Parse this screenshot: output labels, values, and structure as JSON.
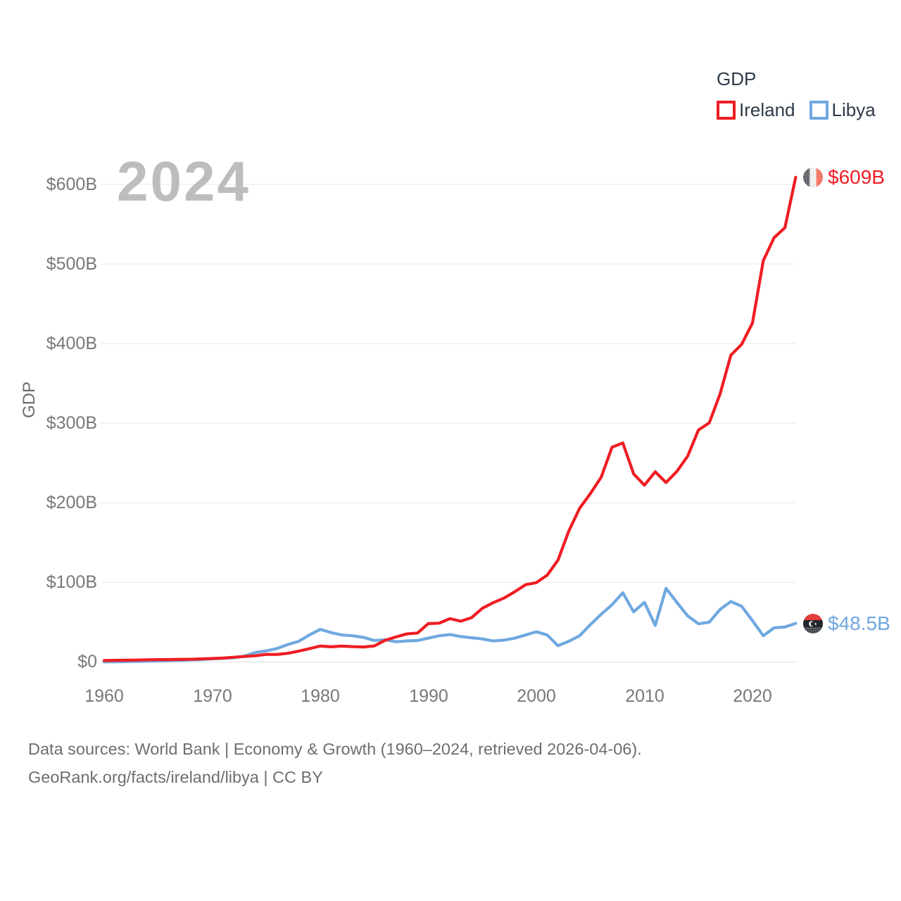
{
  "watermark": "2024",
  "legend": {
    "title": "GDP"
  },
  "y_axis": {
    "label": "GDP",
    "ticks": [
      "$600B",
      "$500B",
      "$400B",
      "$300B",
      "$200B",
      "$100B",
      "$0"
    ]
  },
  "x_axis": {
    "ticks": [
      "1960",
      "1970",
      "1980",
      "1990",
      "2000",
      "2010",
      "2020"
    ]
  },
  "footer": {
    "line1": "Data sources: World Bank | Economy & Growth (1960–2024, retrieved 2026-04-06).",
    "line2": "GeoRank.org/facts/ireland/libya | CC BY"
  },
  "colors": {
    "ireland": "#ee1d23",
    "libya": "#6fa8e0",
    "grid": "#ededed",
    "grid_zero": "#e4e4e4",
    "axis_text": "#787878",
    "watermark": "#bdbdbd",
    "legend_text": "#2e3a48",
    "footer_text": "#6e6e6e"
  },
  "chart_data": {
    "type": "line",
    "title": "GDP",
    "xlabel": "",
    "ylabel": "GDP",
    "x_range": [
      1960,
      2024
    ],
    "ylim_billions": [
      0,
      620
    ],
    "y_ticks_billions": [
      0,
      100,
      200,
      300,
      400,
      500,
      600
    ],
    "grid": "horizontal",
    "legend_position": "top-right",
    "x": [
      1960,
      1961,
      1962,
      1963,
      1964,
      1965,
      1966,
      1967,
      1968,
      1969,
      1970,
      1971,
      1972,
      1973,
      1974,
      1975,
      1976,
      1977,
      1978,
      1979,
      1980,
      1981,
      1982,
      1983,
      1984,
      1985,
      1986,
      1987,
      1988,
      1989,
      1990,
      1991,
      1992,
      1993,
      1994,
      1995,
      1996,
      1997,
      1998,
      1999,
      2000,
      2001,
      2002,
      2003,
      2004,
      2005,
      2006,
      2007,
      2008,
      2009,
      2010,
      2011,
      2012,
      2013,
      2014,
      2015,
      2016,
      2017,
      2018,
      2019,
      2020,
      2021,
      2022,
      2023,
      2024
    ],
    "series": [
      {
        "name": "Ireland",
        "color": "#ee1d23",
        "end_label": "$609B",
        "end_value_billions": 609,
        "values_billions": [
          1.9,
          2.1,
          2.3,
          2.4,
          2.8,
          3.0,
          3.1,
          3.3,
          3.5,
          4.0,
          4.4,
          5.0,
          6.0,
          7.0,
          7.9,
          9.6,
          9.5,
          11.0,
          13.7,
          16.8,
          20.1,
          19.1,
          20.0,
          19.3,
          18.9,
          20.2,
          27.3,
          31.5,
          35.3,
          36.4,
          48.3,
          48.8,
          54.5,
          51.3,
          55.7,
          67.5,
          74.5,
          80.3,
          88.3,
          97.1,
          99.8,
          109.1,
          128.0,
          164.5,
          193.1,
          211.7,
          232.2,
          269.9,
          275.2,
          236.4,
          222.1,
          239.0,
          225.5,
          239.4,
          258.6,
          291.5,
          300.4,
          336.8,
          385.5,
          399.1,
          425.9,
          504.2,
          533.1,
          545.6,
          609.0
        ]
      },
      {
        "name": "Libya",
        "color": "#6fa8e0",
        "end_label": "$48.5B",
        "end_value_billions": 48.5,
        "values_billions": [
          0.2,
          0.3,
          0.5,
          0.7,
          1.0,
          1.3,
          1.7,
          2.1,
          2.7,
          3.1,
          3.9,
          4.6,
          5.4,
          7.5,
          12.0,
          14.0,
          17.0,
          22.0,
          26.0,
          34.0,
          41.0,
          37.0,
          34.0,
          33.0,
          31.0,
          27.0,
          28.0,
          25.5,
          26.5,
          27.0,
          30.0,
          33.0,
          34.5,
          32.0,
          30.5,
          29.0,
          26.5,
          27.5,
          30.0,
          34.0,
          38.0,
          34.0,
          20.5,
          26.0,
          33.0,
          47.0,
          60.0,
          72.0,
          87.0,
          63.0,
          75.0,
          46.0,
          92.5,
          75.0,
          58.0,
          48.0,
          50.0,
          66.0,
          76.0,
          70.0,
          52.0,
          33.0,
          43.0,
          44.0,
          48.5
        ]
      }
    ]
  }
}
